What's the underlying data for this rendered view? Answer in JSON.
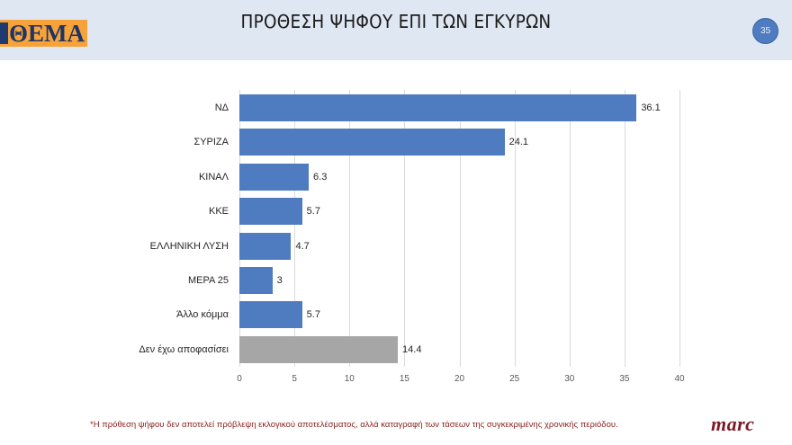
{
  "header": {
    "logo_text": "ΘΕΜΑ",
    "title": "ΠΡΟΘΕΣΗ ΨΗΦΟΥ ΕΠΙ ΤΩΝ ΕΓΚΥΡΩΝ",
    "page_number": "35"
  },
  "colors": {
    "bar_primary": "#4f7cc0",
    "bar_undecided": "#a6a6a6",
    "header_bg": "#dfe7f3",
    "logo_bg": "#f7a33a",
    "logo_text": "#1d3566",
    "footnote": "#8b1d1d",
    "brand": "#7b1a24"
  },
  "chart_data": {
    "type": "bar",
    "orientation": "horizontal",
    "title": "ΠΡΟΘΕΣΗ ΨΗΦΟΥ ΕΠΙ ΤΩΝ ΕΓΚΥΡΩΝ",
    "categories": [
      "ΝΔ",
      "ΣΥΡΙΖΑ",
      "ΚΙΝΑΛ",
      "ΚΚΕ",
      "ΕΛΛΗΝΙΚΗ ΛΥΣΗ",
      "ΜΕΡΑ 25",
      "Άλλο κόμμα",
      "Δεν έχω αποφασίσει"
    ],
    "values": [
      36.1,
      24.1,
      6.3,
      5.7,
      4.7,
      3,
      5.7,
      14.4
    ],
    "value_labels": [
      "36.1",
      "24.1",
      "6.3",
      "5.7",
      "4.7",
      "3",
      "5.7",
      "14.4"
    ],
    "bar_colors": [
      "#4f7cc0",
      "#4f7cc0",
      "#4f7cc0",
      "#4f7cc0",
      "#4f7cc0",
      "#4f7cc0",
      "#4f7cc0",
      "#a6a6a6"
    ],
    "xlabel": "",
    "ylabel": "",
    "xlim": [
      0,
      40
    ],
    "x_ticks": [
      "0",
      "5",
      "10",
      "15",
      "20",
      "25",
      "30",
      "35",
      "40"
    ],
    "grid": true,
    "legend": null
  },
  "footer": {
    "note": "*Η πρόθεση ψήφου δεν αποτελεί πρόβλεψη εκλογικού αποτελέσματος, αλλά καταγραφή των τάσεων της συγκεκριμένης χρονικής περιόδου.",
    "brand": "marc"
  }
}
